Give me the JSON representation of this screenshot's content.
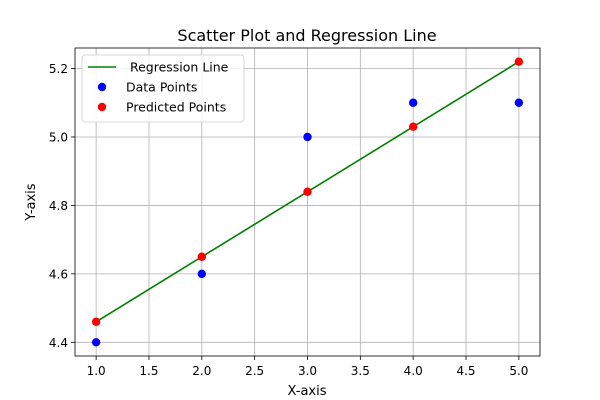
{
  "chart_data": {
    "type": "scatter",
    "title": "Scatter Plot and Regression Line",
    "xlabel": "X-axis",
    "ylabel": "Y-axis",
    "xlim": [
      0.8,
      5.2
    ],
    "ylim": [
      4.36,
      5.26
    ],
    "xticks": [
      1.0,
      1.5,
      2.0,
      2.5,
      3.0,
      3.5,
      4.0,
      4.5,
      5.0
    ],
    "xtick_labels": [
      "1.0",
      "1.5",
      "2.0",
      "2.5",
      "3.0",
      "3.5",
      "4.0",
      "4.5",
      "5.0"
    ],
    "yticks": [
      4.4,
      4.6,
      4.8,
      5.0,
      5.2
    ],
    "ytick_labels": [
      "4.4",
      "4.6",
      "4.8",
      "5.0",
      "5.2"
    ],
    "grid": true,
    "legend_position": "top-left",
    "series": [
      {
        "name": " Regression Line",
        "kind": "line",
        "color": "#008000",
        "x": [
          1,
          5
        ],
        "y": [
          4.46,
          5.22
        ]
      },
      {
        "name": "Data Points",
        "kind": "scatter",
        "color": "#0000ff",
        "x": [
          1,
          2,
          3,
          4,
          5
        ],
        "y": [
          4.4,
          4.6,
          5.0,
          5.1,
          5.1
        ]
      },
      {
        "name": "Predicted Points",
        "kind": "scatter",
        "color": "#ff0000",
        "x": [
          1,
          2,
          3,
          4,
          5
        ],
        "y": [
          4.46,
          4.65,
          4.84,
          5.03,
          5.22
        ]
      }
    ]
  }
}
